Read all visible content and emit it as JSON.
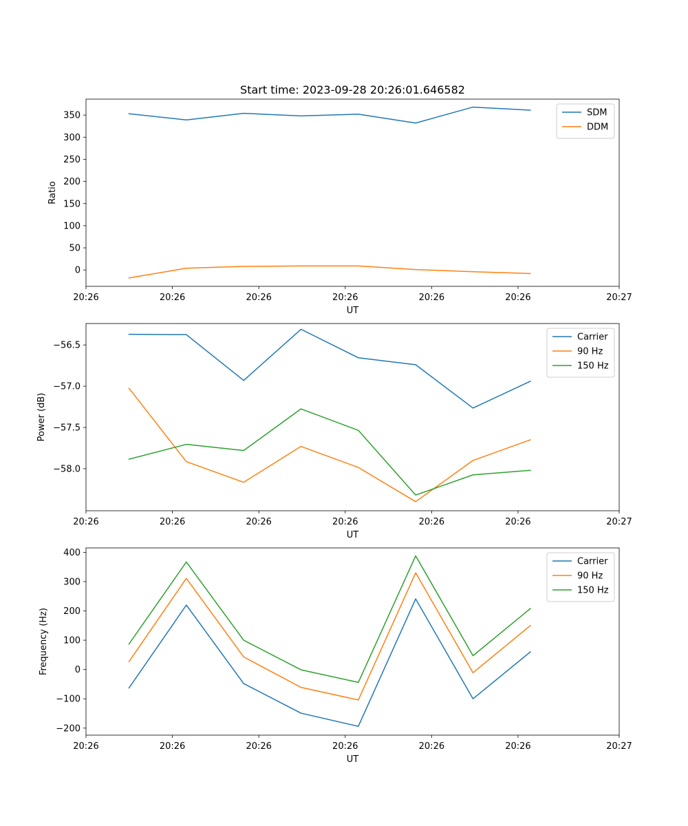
{
  "figure_title": "Start time: 2023-09-28 20:26:01.646582",
  "chart_data": [
    {
      "type": "line",
      "ylabel": "Ratio",
      "xlabel": "UT",
      "x": [
        0,
        1,
        2,
        3,
        4,
        5,
        6,
        7
      ],
      "xlim": [
        -0.75,
        8.55
      ],
      "x_ticks": [
        -0.75,
        0.7571,
        2.2643,
        3.7714,
        5.2786,
        6.7857,
        8.55
      ],
      "x_tick_labels": [
        "20:26",
        "20:26",
        "20:26",
        "20:26",
        "20:26",
        "20:26",
        "20:27"
      ],
      "ylim": [
        -37,
        386
      ],
      "y_ticks": [
        0,
        50,
        100,
        150,
        200,
        250,
        300,
        350
      ],
      "y_tick_labels": [
        "0",
        "50",
        "100",
        "150",
        "200",
        "250",
        "300",
        "350"
      ],
      "legend_position": "top-right",
      "series": [
        {
          "name": "SDM",
          "color": "#1f77b4",
          "values": [
            353,
            339,
            354,
            348,
            352,
            332,
            368,
            361
          ]
        },
        {
          "name": "DDM",
          "color": "#ff7f0e",
          "values": [
            -18,
            4,
            8,
            9,
            9,
            1,
            -4,
            -8
          ]
        }
      ]
    },
    {
      "type": "line",
      "ylabel": "Power (dB)",
      "xlabel": "UT",
      "x": [
        0,
        1,
        2,
        3,
        4,
        5,
        6,
        7
      ],
      "xlim": [
        -0.75,
        8.55
      ],
      "x_ticks": [
        -0.75,
        0.7571,
        2.2643,
        3.7714,
        5.2786,
        6.7857,
        8.55
      ],
      "x_tick_labels": [
        "20:26",
        "20:26",
        "20:26",
        "20:26",
        "20:26",
        "20:26",
        "20:27"
      ],
      "ylim": [
        -58.51,
        -56.24
      ],
      "y_ticks": [
        -58.0,
        -57.5,
        -57.0,
        -56.5
      ],
      "y_tick_labels": [
        "−58.0",
        "−57.5",
        "−57.0",
        "−56.5"
      ],
      "legend_position": "top-right",
      "series": [
        {
          "name": "Carrier",
          "color": "#1f77b4",
          "values": [
            -56.37,
            -56.375,
            -56.93,
            -56.31,
            -56.655,
            -56.74,
            -57.265,
            -56.94
          ]
        },
        {
          "name": "90 Hz",
          "color": "#ff7f0e",
          "values": [
            -57.025,
            -57.915,
            -58.165,
            -57.73,
            -57.985,
            -58.4,
            -57.9,
            -57.65
          ]
        },
        {
          "name": "150 Hz",
          "color": "#2ca02c",
          "values": [
            -57.885,
            -57.705,
            -57.78,
            -57.275,
            -57.535,
            -58.32,
            -58.075,
            -58.02
          ]
        }
      ]
    },
    {
      "type": "line",
      "ylabel": "Frequency (Hz)",
      "xlabel": "UT",
      "x": [
        0,
        1,
        2,
        3,
        4,
        5,
        6,
        7
      ],
      "xlim": [
        -0.75,
        8.55
      ],
      "x_ticks": [
        -0.75,
        0.7571,
        2.2643,
        3.7714,
        5.2786,
        6.7857,
        8.55
      ],
      "x_tick_labels": [
        "20:26",
        "20:26",
        "20:26",
        "20:26",
        "20:26",
        "20:26",
        "20:27"
      ],
      "ylim": [
        -224,
        415
      ],
      "y_ticks": [
        -200,
        -100,
        0,
        100,
        200,
        300,
        400
      ],
      "y_tick_labels": [
        "−200",
        "−100",
        "0",
        "100",
        "200",
        "300",
        "400"
      ],
      "legend_position": "top-right",
      "series": [
        {
          "name": "Carrier",
          "color": "#1f77b4",
          "values": [
            -63,
            220,
            -48,
            -149,
            -194,
            241,
            -100,
            60
          ]
        },
        {
          "name": "90 Hz",
          "color": "#ff7f0e",
          "values": [
            27,
            311,
            43,
            -61,
            -104,
            330,
            -11,
            150
          ]
        },
        {
          "name": "150 Hz",
          "color": "#2ca02c",
          "values": [
            87,
            367,
            100,
            -1,
            -44,
            388,
            47,
            208
          ]
        }
      ]
    }
  ]
}
